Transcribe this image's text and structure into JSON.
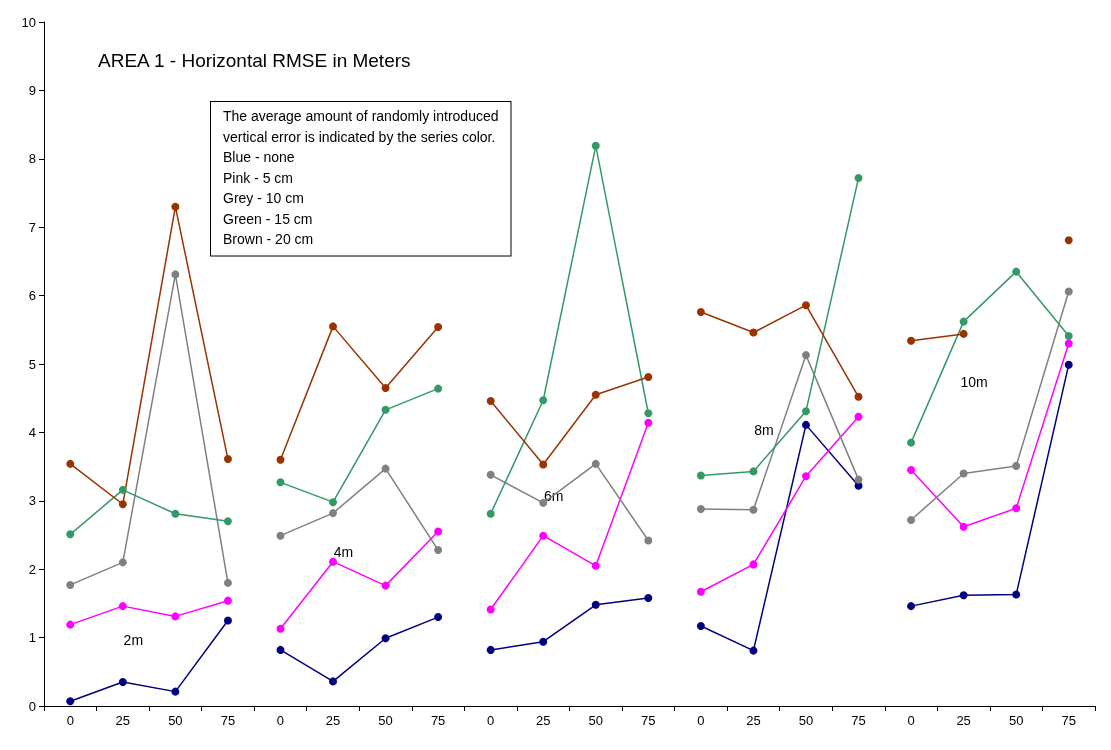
{
  "chart_data": {
    "type": "line",
    "title": "AREA 1 - Horizontal RMSE in Meters",
    "categories": [
      "0",
      "25",
      "50",
      "75",
      "0",
      "25",
      "50",
      "75",
      "0",
      "25",
      "50",
      "75",
      "0",
      "25",
      "50",
      "75",
      "0",
      "25",
      "50",
      "75"
    ],
    "ylim": [
      0,
      10
    ],
    "yticks": [
      0,
      1,
      2,
      3,
      4,
      5,
      6,
      7,
      8,
      9,
      10
    ],
    "grid": false,
    "marker": "circle",
    "line_style": "solid",
    "annotations": [
      "The average amount of randomly introduced\nvertical error is indicated by the series color.\nBlue - none\nPink - 5 cm\nGrey - 10 cm\nGreen - 15 cm\nBrown - 20 cm",
      "2m",
      "4m",
      "6m",
      "8m",
      "10m"
    ],
    "series": [
      {
        "color": "#000080",
        "values": [
          0.07,
          0.35,
          0.21,
          1.25,
          null,
          null,
          null,
          null,
          null,
          null,
          null,
          null,
          null,
          null,
          null,
          null,
          null,
          null,
          null,
          null
        ]
      },
      {
        "color": "#ff00ff",
        "values": [
          1.19,
          1.46,
          1.31,
          1.54,
          null,
          null,
          null,
          null,
          null,
          null,
          null,
          null,
          null,
          null,
          null,
          null,
          null,
          null,
          null,
          null
        ]
      },
      {
        "color": "#808080",
        "values": [
          1.77,
          2.1,
          6.31,
          1.8,
          null,
          null,
          null,
          null,
          null,
          null,
          null,
          null,
          null,
          null,
          null,
          null,
          null,
          null,
          null,
          null
        ]
      },
      {
        "color": "#339966",
        "values": [
          2.51,
          3.16,
          2.81,
          2.7,
          null,
          null,
          null,
          null,
          null,
          null,
          null,
          null,
          null,
          null,
          null,
          null,
          null,
          null,
          null,
          null
        ]
      },
      {
        "color": "#993300",
        "values": [
          3.54,
          2.95,
          7.3,
          3.61,
          null,
          null,
          null,
          null,
          null,
          null,
          null,
          null,
          null,
          null,
          null,
          null,
          null,
          null,
          null,
          null
        ]
      },
      {
        "color": "#000080",
        "values": [
          null,
          null,
          null,
          null,
          0.82,
          0.36,
          0.99,
          1.3,
          null,
          null,
          null,
          null,
          null,
          null,
          null,
          null,
          null,
          null,
          null,
          null
        ]
      },
      {
        "color": "#ff00ff",
        "values": [
          null,
          null,
          null,
          null,
          1.13,
          2.11,
          1.76,
          2.55,
          null,
          null,
          null,
          null,
          null,
          null,
          null,
          null,
          null,
          null,
          null,
          null
        ]
      },
      {
        "color": "#808080",
        "values": [
          null,
          null,
          null,
          null,
          2.49,
          2.82,
          3.47,
          2.28,
          null,
          null,
          null,
          null,
          null,
          null,
          null,
          null,
          null,
          null,
          null,
          null
        ]
      },
      {
        "color": "#339966",
        "values": [
          null,
          null,
          null,
          null,
          3.27,
          2.98,
          4.33,
          4.64,
          null,
          null,
          null,
          null,
          null,
          null,
          null,
          null,
          null,
          null,
          null,
          null
        ]
      },
      {
        "color": "#993300",
        "values": [
          null,
          null,
          null,
          null,
          3.6,
          5.55,
          4.65,
          5.54,
          null,
          null,
          null,
          null,
          null,
          null,
          null,
          null,
          null,
          null,
          null,
          null
        ]
      },
      {
        "color": "#000080",
        "values": [
          null,
          null,
          null,
          null,
          null,
          null,
          null,
          null,
          0.82,
          0.94,
          1.48,
          1.58,
          null,
          null,
          null,
          null,
          null,
          null,
          null,
          null
        ]
      },
      {
        "color": "#ff00ff",
        "values": [
          null,
          null,
          null,
          null,
          null,
          null,
          null,
          null,
          1.41,
          2.49,
          2.05,
          4.14,
          null,
          null,
          null,
          null,
          null,
          null,
          null,
          null
        ]
      },
      {
        "color": "#808080",
        "values": [
          null,
          null,
          null,
          null,
          null,
          null,
          null,
          null,
          3.38,
          2.97,
          3.54,
          2.42,
          null,
          null,
          null,
          null,
          null,
          null,
          null,
          null
        ]
      },
      {
        "color": "#339966",
        "values": [
          null,
          null,
          null,
          null,
          null,
          null,
          null,
          null,
          2.81,
          4.47,
          8.19,
          4.28,
          null,
          null,
          null,
          null,
          null,
          null,
          null,
          null
        ]
      },
      {
        "color": "#993300",
        "values": [
          null,
          null,
          null,
          null,
          null,
          null,
          null,
          null,
          4.46,
          3.53,
          4.55,
          4.81,
          null,
          null,
          null,
          null,
          null,
          null,
          null,
          null
        ]
      },
      {
        "color": "#000080",
        "values": [
          null,
          null,
          null,
          null,
          null,
          null,
          null,
          null,
          null,
          null,
          null,
          null,
          1.17,
          0.81,
          4.11,
          3.22,
          null,
          null,
          null,
          null
        ]
      },
      {
        "color": "#ff00ff",
        "values": [
          null,
          null,
          null,
          null,
          null,
          null,
          null,
          null,
          null,
          null,
          null,
          null,
          1.67,
          2.07,
          3.36,
          4.23,
          null,
          null,
          null,
          null
        ]
      },
      {
        "color": "#808080",
        "values": [
          null,
          null,
          null,
          null,
          null,
          null,
          null,
          null,
          null,
          null,
          null,
          null,
          2.88,
          2.87,
          5.13,
          3.31,
          null,
          null,
          null,
          null
        ]
      },
      {
        "color": "#339966",
        "values": [
          null,
          null,
          null,
          null,
          null,
          null,
          null,
          null,
          null,
          null,
          null,
          null,
          3.37,
          3.43,
          4.31,
          7.72,
          null,
          null,
          null,
          null
        ]
      },
      {
        "color": "#993300",
        "values": [
          null,
          null,
          null,
          null,
          null,
          null,
          null,
          null,
          null,
          null,
          null,
          null,
          5.76,
          5.46,
          5.86,
          4.52,
          null,
          null,
          null,
          null
        ]
      },
      {
        "color": "#000080",
        "values": [
          null,
          null,
          null,
          null,
          null,
          null,
          null,
          null,
          null,
          null,
          null,
          null,
          null,
          null,
          null,
          null,
          1.46,
          1.62,
          1.63,
          4.99
        ]
      },
      {
        "color": "#ff00ff",
        "values": [
          null,
          null,
          null,
          null,
          null,
          null,
          null,
          null,
          null,
          null,
          null,
          null,
          null,
          null,
          null,
          null,
          3.45,
          2.62,
          2.89,
          5.3
        ]
      },
      {
        "color": "#808080",
        "values": [
          null,
          null,
          null,
          null,
          null,
          null,
          null,
          null,
          null,
          null,
          null,
          null,
          null,
          null,
          null,
          null,
          2.72,
          3.4,
          3.51,
          6.06
        ]
      },
      {
        "color": "#339966",
        "values": [
          null,
          null,
          null,
          null,
          null,
          null,
          null,
          null,
          null,
          null,
          null,
          null,
          null,
          null,
          null,
          null,
          3.85,
          5.62,
          6.35,
          5.41
        ]
      },
      {
        "color": "#993300",
        "values": [
          null,
          null,
          null,
          null,
          null,
          null,
          null,
          null,
          null,
          null,
          null,
          null,
          null,
          null,
          null,
          null,
          5.34,
          5.44,
          null,
          6.81
        ]
      }
    ]
  }
}
